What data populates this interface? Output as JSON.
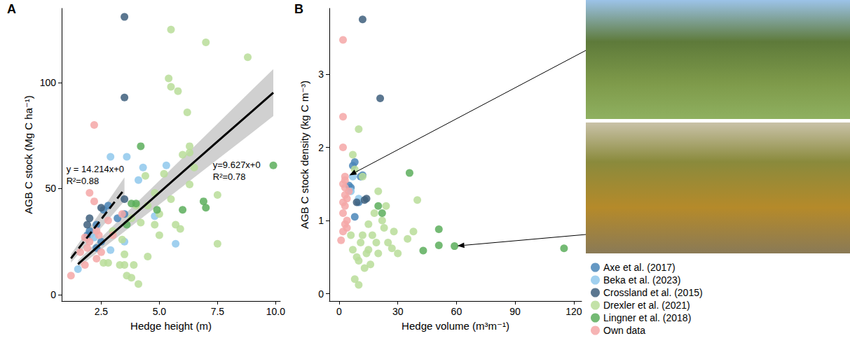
{
  "chart_data": [
    {
      "type": "scatter",
      "title": "A",
      "xlabel": "Hedge height (m)",
      "ylabel": "AGB C stock (Mg C ha⁻¹)",
      "xlim": [
        0.8,
        10.2
      ],
      "xticks": [
        2.5,
        {
          "value": 5,
          "label": "5.0"
        },
        7.5,
        {
          "value": 10,
          "label": "10.0"
        }
      ],
      "ylim": [
        -3,
        135
      ],
      "yticks": [
        0,
        50,
        100
      ],
      "grid": false,
      "series": [
        {
          "name": "Axe et al. (2017)",
          "color": "#4a86b8",
          "x": [
            1.9,
            2.0,
            2.3,
            2.6,
            2.8,
            2.3,
            2.5,
            3.2,
            3.5
          ],
          "values": [
            28,
            30,
            33,
            40,
            42,
            22,
            25,
            36,
            38
          ]
        },
        {
          "name": "Beka et al. (2023)",
          "color": "#8fc8ec",
          "x": [
            1.5,
            2.9,
            3.6,
            3.5,
            4.1,
            4.3,
            5.3,
            5.7,
            4.8,
            2.9,
            2.2
          ],
          "values": [
            12,
            65,
            65,
            25,
            54,
            60,
            61,
            24,
            37,
            21,
            27
          ]
        },
        {
          "name": "Crossland et al. (2015)",
          "color": "#3e5f7c",
          "x": [
            3.5,
            3.5,
            3.5,
            2.5,
            2.0,
            1.9
          ],
          "values": [
            131,
            93,
            45,
            41,
            36,
            33
          ]
        },
        {
          "name": "Drexler et al. (2021)",
          "color": "#b9dd99",
          "x": [
            5.5,
            7.0,
            8.8,
            5.4,
            5.5,
            5.8,
            6.2,
            6.3,
            6.3,
            6.0,
            5.2,
            4.4,
            5.5,
            5.7,
            5.9,
            6.5,
            7.5,
            7.5,
            4.5,
            4.1,
            3.9,
            3.5,
            3.5,
            3.6,
            2.6,
            2.8,
            3.3,
            3.0,
            3.4,
            3.8,
            4.2,
            4.5,
            4.8,
            5.0,
            4.8,
            4.0,
            6.3,
            3.8,
            5.0
          ],
          "values": [
            125,
            119,
            112,
            102,
            98,
            96,
            86,
            70,
            67,
            66,
            57,
            56,
            45,
            33,
            31,
            60,
            47,
            24,
            18,
            5,
            14,
            14,
            19,
            9,
            15,
            15,
            14,
            30,
            26,
            36,
            34,
            42,
            48,
            28,
            33,
            42,
            52,
            8,
            38
          ]
        },
        {
          "name": "Lingner et al. (2018)",
          "color": "#5cae5c",
          "x": [
            4.2,
            9.9,
            6.9,
            7.0,
            6.0,
            4.9,
            3.8,
            4.0,
            3.6
          ],
          "values": [
            70,
            61,
            44,
            41,
            40,
            40,
            43,
            43,
            33
          ]
        },
        {
          "name": "Own data",
          "color": "#f5a7a7",
          "x": [
            1.2,
            1.8,
            2.2,
            2.0,
            2.2,
            1.8,
            2.0,
            2.3,
            2.5,
            1.9,
            2.3,
            2.4,
            3.0,
            3.4,
            2.8,
            1.6
          ],
          "values": [
            9,
            14,
            80,
            48,
            44,
            27,
            25,
            30,
            20,
            22,
            17,
            28,
            28,
            38,
            35,
            20
          ]
        }
      ],
      "fits": [
        {
          "line_style": "dashed",
          "color": "#000000",
          "x": [
            1.2,
            2.0,
            2.8,
            3.5
          ],
          "values": [
            17.1,
            28.4,
            39.8,
            49.7
          ],
          "lower": [
            15.1,
            25.2,
            35.3,
            44.1
          ],
          "upper": [
            19.0,
            31.6,
            44.2,
            55.3
          ],
          "labels": [
            "y = 14.214x+0",
            "R²=0.88"
          ],
          "label_x": 1.0,
          "label_y": 62
        },
        {
          "line_style": "solid",
          "color": "#000000",
          "x": [
            1.5,
            3.0,
            4.5,
            6.0,
            7.5,
            9.0,
            9.9
          ],
          "values": [
            14.4,
            28.9,
            43.3,
            57.8,
            72.2,
            86.6,
            95.3
          ],
          "lower": [
            12.8,
            25.5,
            38.3,
            51.0,
            63.8,
            76.5,
            84.2
          ],
          "upper": [
            16.1,
            32.3,
            48.4,
            64.5,
            80.6,
            96.8,
            106.4
          ],
          "labels": [
            "y=9.627x+0",
            "R²=0.78"
          ],
          "label_x": 7.3,
          "label_y": 64
        }
      ]
    },
    {
      "type": "scatter",
      "title": "B",
      "xlabel": "Hedge volume (m³m⁻¹)",
      "ylabel": "AGB C stock density (kg C m⁻³)",
      "xlim": [
        -5,
        124
      ],
      "xticks": [
        0,
        30,
        60,
        90,
        120
      ],
      "ylim": [
        -0.1,
        3.9
      ],
      "yticks": [
        0,
        1,
        2,
        3
      ],
      "grid": false,
      "legend": "lower right",
      "series": [
        {
          "name": "Axe et al. (2017)",
          "color": "#4a86b8",
          "x": [
            7,
            8,
            11,
            5,
            6,
            8,
            12,
            10
          ],
          "values": [
            1.75,
            1.8,
            1.6,
            1.48,
            1.45,
            1.05,
            1.62,
            1.25
          ]
        },
        {
          "name": "Beka et al. (2023)",
          "color": "#8fc8ec",
          "x": [
            7,
            10,
            6
          ],
          "values": [
            1.6,
            1.3,
            1.4
          ]
        },
        {
          "name": "Crossland et al. (2015)",
          "color": "#3e5f7c",
          "x": [
            12,
            21,
            14,
            13,
            9
          ],
          "values": [
            3.75,
            2.67,
            1.3,
            1.28,
            1.25
          ]
        },
        {
          "name": "Drexler et al. (2021)",
          "color": "#b9dd99",
          "x": [
            10,
            7,
            12,
            8,
            20,
            24,
            40,
            38,
            35,
            28,
            27,
            20,
            15,
            10,
            8,
            10,
            13,
            17,
            22,
            25,
            12,
            7,
            9,
            15,
            18,
            30,
            14,
            19,
            11,
            6,
            16,
            23
          ],
          "values": [
            2.25,
            1.9,
            1.6,
            1.7,
            1.4,
            1.2,
            1.28,
            0.85,
            0.75,
            0.85,
            0.62,
            0.55,
            0.6,
            0.45,
            0.2,
            0.12,
            0.35,
            0.8,
            1.0,
            0.7,
            0.8,
            0.6,
            0.5,
            0.95,
            1.1,
            0.55,
            0.55,
            0.7,
            0.7,
            0.8,
            0.4,
            0.9
          ]
        },
        {
          "name": "Lingner et al. (2018)",
          "color": "#5cae5c",
          "x": [
            36,
            51,
            51,
            43,
            59,
            115,
            20,
            22
          ],
          "values": [
            1.65,
            0.88,
            0.66,
            0.59,
            0.65,
            0.62,
            1.2,
            1.1
          ]
        },
        {
          "name": "Own data",
          "color": "#f5a7a7",
          "x": [
            2,
            2,
            2,
            3,
            3,
            2,
            3,
            4,
            3,
            2,
            4,
            3,
            2,
            4,
            1,
            3,
            5,
            2
          ],
          "values": [
            3.47,
            2.42,
            2.0,
            1.6,
            1.55,
            1.5,
            1.35,
            1.3,
            1.2,
            1.1,
            1.0,
            0.95,
            0.85,
            0.9,
            0.73,
            1.45,
            1.4,
            1.25
          ]
        }
      ],
      "arrows": [
        {
          "x": 4,
          "y": 1.6
        },
        {
          "x": 59,
          "y": 0.65
        }
      ]
    }
  ]
}
